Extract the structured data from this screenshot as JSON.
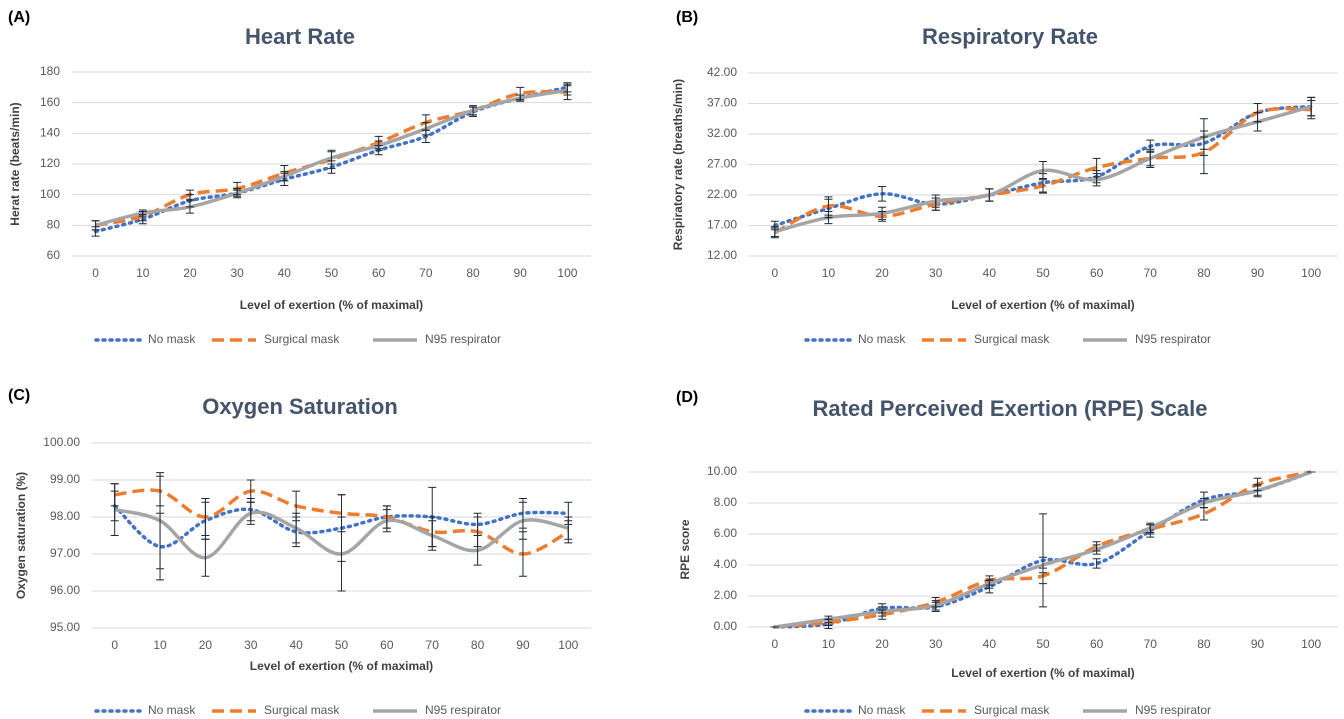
{
  "chart_data": [
    {
      "type": "line",
      "label": "(A)",
      "title": "Heart Rate",
      "xlabel": "Level of exertion (% of maximal)",
      "ylabel": "Herat rate  (beats/min)",
      "categories": [
        "0",
        "10",
        "20",
        "30",
        "40",
        "50",
        "60",
        "70",
        "80",
        "90",
        "100"
      ],
      "ylim": [
        60,
        180
      ],
      "yticks": [
        60,
        80,
        100,
        120,
        140,
        160,
        180
      ],
      "grid": true,
      "series": [
        {
          "name": "No mask",
          "color": "#4472c4",
          "style": "dotted",
          "values": [
            76,
            84,
            96,
            101,
            110,
            118,
            129,
            138,
            154,
            163,
            170
          ],
          "errors": [
            3,
            3,
            4,
            3,
            4,
            4,
            3,
            4,
            3,
            2,
            3
          ]
        },
        {
          "name": "Surgical mask",
          "color": "#ed7d31",
          "style": "dashed",
          "values": [
            80,
            86,
            100,
            104,
            114,
            123,
            134,
            147,
            155,
            166,
            167
          ],
          "errors": [
            3,
            3,
            3,
            4,
            5,
            6,
            4,
            5,
            3,
            4,
            5
          ]
        },
        {
          "name": "N95 respirator",
          "color": "#a5a5a5",
          "style": "solid",
          "values": [
            80,
            88,
            92,
            101,
            112,
            124,
            132,
            143,
            155,
            163,
            168
          ],
          "errors": [
            3,
            2,
            4,
            2,
            3,
            4,
            3,
            4,
            3,
            2,
            3
          ]
        }
      ]
    },
    {
      "type": "line",
      "label": "(B)",
      "title": "Respiratory Rate",
      "xlabel": "Level of exertion (% of maximal)",
      "ylabel": "Respiratory rate  (breaths/min)",
      "categories": [
        "0",
        "10",
        "20",
        "30",
        "40",
        "50",
        "60",
        "70",
        "80",
        "90",
        "100"
      ],
      "ylim": [
        12,
        42
      ],
      "yticks": [
        {
          "value": 12,
          "label": "12.00"
        },
        {
          "value": 17,
          "label": "17.00"
        },
        {
          "value": 22,
          "label": "22.00"
        },
        {
          "value": 27,
          "label": "27.00"
        },
        {
          "value": 32,
          "label": "32.00"
        },
        {
          "value": 37,
          "label": "37.00"
        },
        {
          "value": 42,
          "label": "42.00"
        }
      ],
      "grid": true,
      "series": [
        {
          "name": "No mask",
          "color": "#4472c4",
          "style": "dotted",
          "values": [
            17,
            19.8,
            22.2,
            20.5,
            22,
            24,
            25,
            30,
            30.5,
            35.5,
            36.5
          ],
          "errors": [
            0.7,
            1.5,
            1.2,
            1,
            1,
            1.5,
            1,
            1,
            1,
            1.5,
            1.5
          ]
        },
        {
          "name": "Surgical mask",
          "color": "#ed7d31",
          "style": "dashed",
          "values": [
            15.8,
            20.2,
            18.5,
            20.5,
            22,
            23.5,
            26.5,
            28,
            29,
            35.5,
            36
          ],
          "errors": [
            0.8,
            1.5,
            0.8,
            1,
            1,
            1.2,
            1.5,
            1.5,
            3.5,
            1.5,
            1.5
          ]
        },
        {
          "name": "N95 respirator",
          "color": "#a5a5a5",
          "style": "solid",
          "values": [
            16,
            18.3,
            19,
            21,
            22,
            26,
            24.5,
            28,
            31.5,
            34,
            36.5
          ],
          "errors": [
            0.8,
            1,
            1,
            1,
            1,
            1.5,
            1,
            1.2,
            3,
            1.5,
            1.5
          ]
        }
      ]
    },
    {
      "type": "line",
      "label": "(C)",
      "title": "Oxygen Saturation",
      "xlabel": "Level of exertion (% of maximal)",
      "ylabel": "Oxygen saturation (%)",
      "categories": [
        "0",
        "10",
        "20",
        "30",
        "40",
        "50",
        "60",
        "70",
        "80",
        "90",
        "100"
      ],
      "ylim": [
        95,
        100
      ],
      "yticks": [
        {
          "value": 95,
          "label": "95.00"
        },
        {
          "value": 96,
          "label": "96.00"
        },
        {
          "value": 97,
          "label": "97.00"
        },
        {
          "value": 98,
          "label": "98.00"
        },
        {
          "value": 99,
          "label": "99.00"
        },
        {
          "value": 100,
          "label": "100.00"
        }
      ],
      "grid": true,
      "series": [
        {
          "name": "No mask",
          "color": "#4472c4",
          "style": "dotted",
          "values": [
            98.3,
            97.2,
            97.9,
            98.2,
            97.6,
            97.7,
            98,
            98,
            97.8,
            98.1,
            98.1
          ],
          "errors": [
            0.4,
            0.9,
            0.5,
            0.3,
            0.4,
            0.9,
            0.3,
            0.8,
            0.3,
            0.4,
            0.3
          ]
        },
        {
          "name": "Surgical mask",
          "color": "#ed7d31",
          "style": "dashed",
          "values": [
            98.6,
            98.7,
            98,
            98.7,
            98.3,
            98.1,
            98,
            97.6,
            97.6,
            97,
            97.6
          ],
          "errors": [
            0.3,
            0.4,
            0.5,
            0.3,
            0.4,
            0.5,
            0.3,
            0.4,
            0.4,
            0.6,
            0.3
          ]
        },
        {
          "name": "N95 respirator",
          "color": "#a5a5a5",
          "style": "solid",
          "values": [
            98.2,
            97.9,
            96.9,
            98.1,
            97.7,
            97,
            97.9,
            97.5,
            97.1,
            97.9,
            97.7
          ],
          "errors": [
            0.7,
            1.3,
            0.5,
            0.3,
            0.4,
            1,
            0.3,
            0.4,
            0.4,
            0.5,
            0.3
          ]
        }
      ]
    },
    {
      "type": "line",
      "label": "(D)",
      "title": "Rated Perceived Exertion (RPE) Scale",
      "xlabel": "Level of exertion (% of maximal)",
      "ylabel": "RPE score",
      "categories": [
        "0",
        "10",
        "20",
        "30",
        "40",
        "50",
        "60",
        "70",
        "80",
        "90",
        "100"
      ],
      "ylim": [
        0,
        10
      ],
      "yticks": [
        {
          "value": 0,
          "label": "0.00"
        },
        {
          "value": 2,
          "label": "2.00"
        },
        {
          "value": 4,
          "label": "4.00"
        },
        {
          "value": 6,
          "label": "6.00"
        },
        {
          "value": 8,
          "label": "8.00"
        },
        {
          "value": 10,
          "label": "10.00"
        }
      ],
      "grid": true,
      "series": [
        {
          "name": "No mask",
          "color": "#4472c4",
          "style": "dotted",
          "values": [
            0,
            0.2,
            1.2,
            1.3,
            2.6,
            4.3,
            4.1,
            6.2,
            8.2,
            8.8,
            10
          ],
          "errors": [
            0,
            0.3,
            0.3,
            0.3,
            0.4,
            3,
            0.3,
            0.4,
            0.5,
            0.4,
            0
          ]
        },
        {
          "name": "Surgical mask",
          "color": "#ed7d31",
          "style": "dashed",
          "values": [
            0,
            0.3,
            0.8,
            1.6,
            3,
            3.3,
            5.2,
            6.3,
            7.3,
            9.2,
            10
          ],
          "errors": [
            0,
            0.2,
            0.3,
            0.3,
            0.3,
            0.5,
            0.3,
            0.3,
            0.4,
            0.4,
            0
          ]
        },
        {
          "name": "N95 respirator",
          "color": "#a5a5a5",
          "style": "solid",
          "values": [
            0,
            0.5,
            1,
            1.4,
            2.8,
            4,
            5,
            6.4,
            8,
            8.8,
            10
          ],
          "errors": [
            0,
            0.2,
            0.3,
            0.3,
            0.3,
            0.5,
            0.3,
            0.3,
            0.3,
            0.3,
            0
          ]
        }
      ]
    }
  ]
}
